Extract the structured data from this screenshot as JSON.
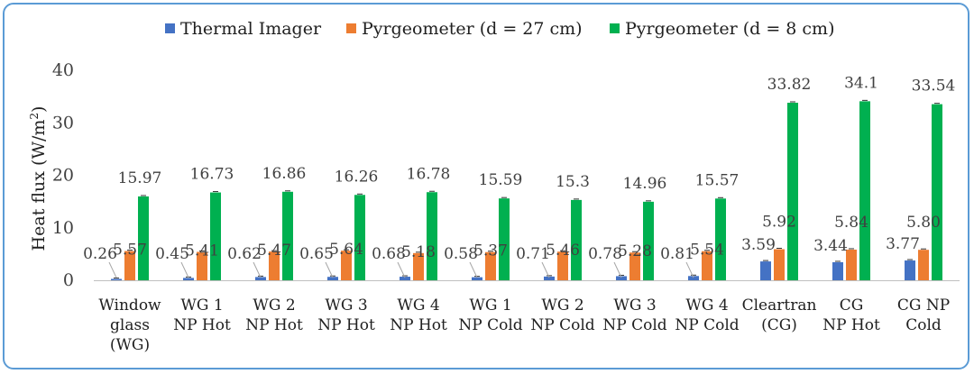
{
  "chart_data": {
    "type": "bar",
    "title": "",
    "xlabel": "",
    "ylabel": "Heat flux (W/m²)",
    "ylabel_main": "Heat flux (W/m",
    "ylabel_sup": "2",
    "ylabel_close": ")",
    "ylim": [
      0,
      40
    ],
    "yticks": [
      0,
      10,
      20,
      30,
      40
    ],
    "grid": false,
    "legend_position": "top",
    "categories": [
      [
        "Window",
        "glass",
        "(WG)"
      ],
      [
        "WG 1",
        "NP Hot"
      ],
      [
        "WG 2",
        "NP Hot"
      ],
      [
        "WG 3",
        "NP Hot"
      ],
      [
        "WG 4",
        "NP Hot"
      ],
      [
        "WG 1",
        "NP Cold"
      ],
      [
        "WG 2",
        "NP Cold"
      ],
      [
        "WG 3",
        "NP Cold"
      ],
      [
        "WG 4",
        "NP Cold"
      ],
      [
        "Cleartran",
        "(CG)"
      ],
      [
        "CG",
        "NP Hot"
      ],
      [
        "CG NP",
        "Cold"
      ]
    ],
    "series": [
      {
        "name": "Thermal Imager",
        "color": "#4472c4",
        "values": [
          0.26,
          0.45,
          0.62,
          0.65,
          0.68,
          0.58,
          0.71,
          0.78,
          0.81,
          3.59,
          3.44,
          3.77
        ],
        "labels": [
          "0.26",
          "0.45",
          "0.62",
          "0.65",
          "0.68",
          "0.58",
          "0.71",
          "0.78",
          "0.81",
          "3.59",
          "3.44",
          "3.77"
        ]
      },
      {
        "name": "Pyrgeometer (d = 27 cm)",
        "color": "#ed7d31",
        "values": [
          5.57,
          5.41,
          5.47,
          5.64,
          5.18,
          5.37,
          5.46,
          5.28,
          5.54,
          5.92,
          5.84,
          5.8
        ],
        "labels": [
          "5.57",
          "5.41",
          "5.47",
          "5.64",
          "5.18",
          "5.37",
          "5.46",
          "5.28",
          "5.54",
          "5.92",
          "5.84",
          "5.80"
        ]
      },
      {
        "name": "Pyrgeometer (d = 8 cm)",
        "color": "#00b050",
        "values": [
          15.97,
          16.73,
          16.86,
          16.26,
          16.78,
          15.59,
          15.3,
          14.96,
          15.57,
          33.82,
          34.1,
          33.54
        ],
        "labels": [
          "15.97",
          "16.73",
          "16.86",
          "16.26",
          "16.78",
          "15.59",
          "15.3",
          "14.96",
          "15.57",
          "33.82",
          "34.1",
          "33.54"
        ]
      }
    ]
  }
}
